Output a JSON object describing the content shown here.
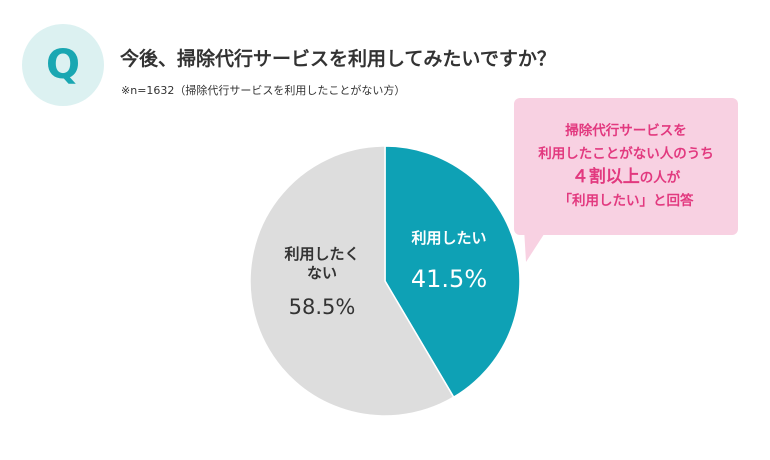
{
  "badge": {
    "letter": "Q"
  },
  "question": "今後、掃除代行サービスを利用してみたいですか？",
  "note": "※n=1632（掃除代行サービスを利用したことがない方）",
  "callout": {
    "line1": "掃除代行サービスを",
    "line2": "利用したことがない人のうち",
    "line3_big": "４割以上",
    "line3_rest": "の人が",
    "line4": "「利用したい」と回答"
  },
  "colors": {
    "teal": "#0ea1b5",
    "gray": "#dddddd",
    "badge_bg": "#dcf1f1",
    "callout_bg": "#f8d1e2",
    "callout_text": "#e2397f"
  },
  "chart_data": {
    "type": "pie",
    "slices": [
      {
        "label": "利用したい",
        "value_label": "41.5%",
        "value": 41.5,
        "color": "#0ea1b5",
        "label_color": "#ffffff"
      },
      {
        "label": "利用したく\nない",
        "value_label": "58.5%",
        "value": 58.5,
        "color": "#dddddd",
        "label_color": "#333333"
      }
    ]
  }
}
